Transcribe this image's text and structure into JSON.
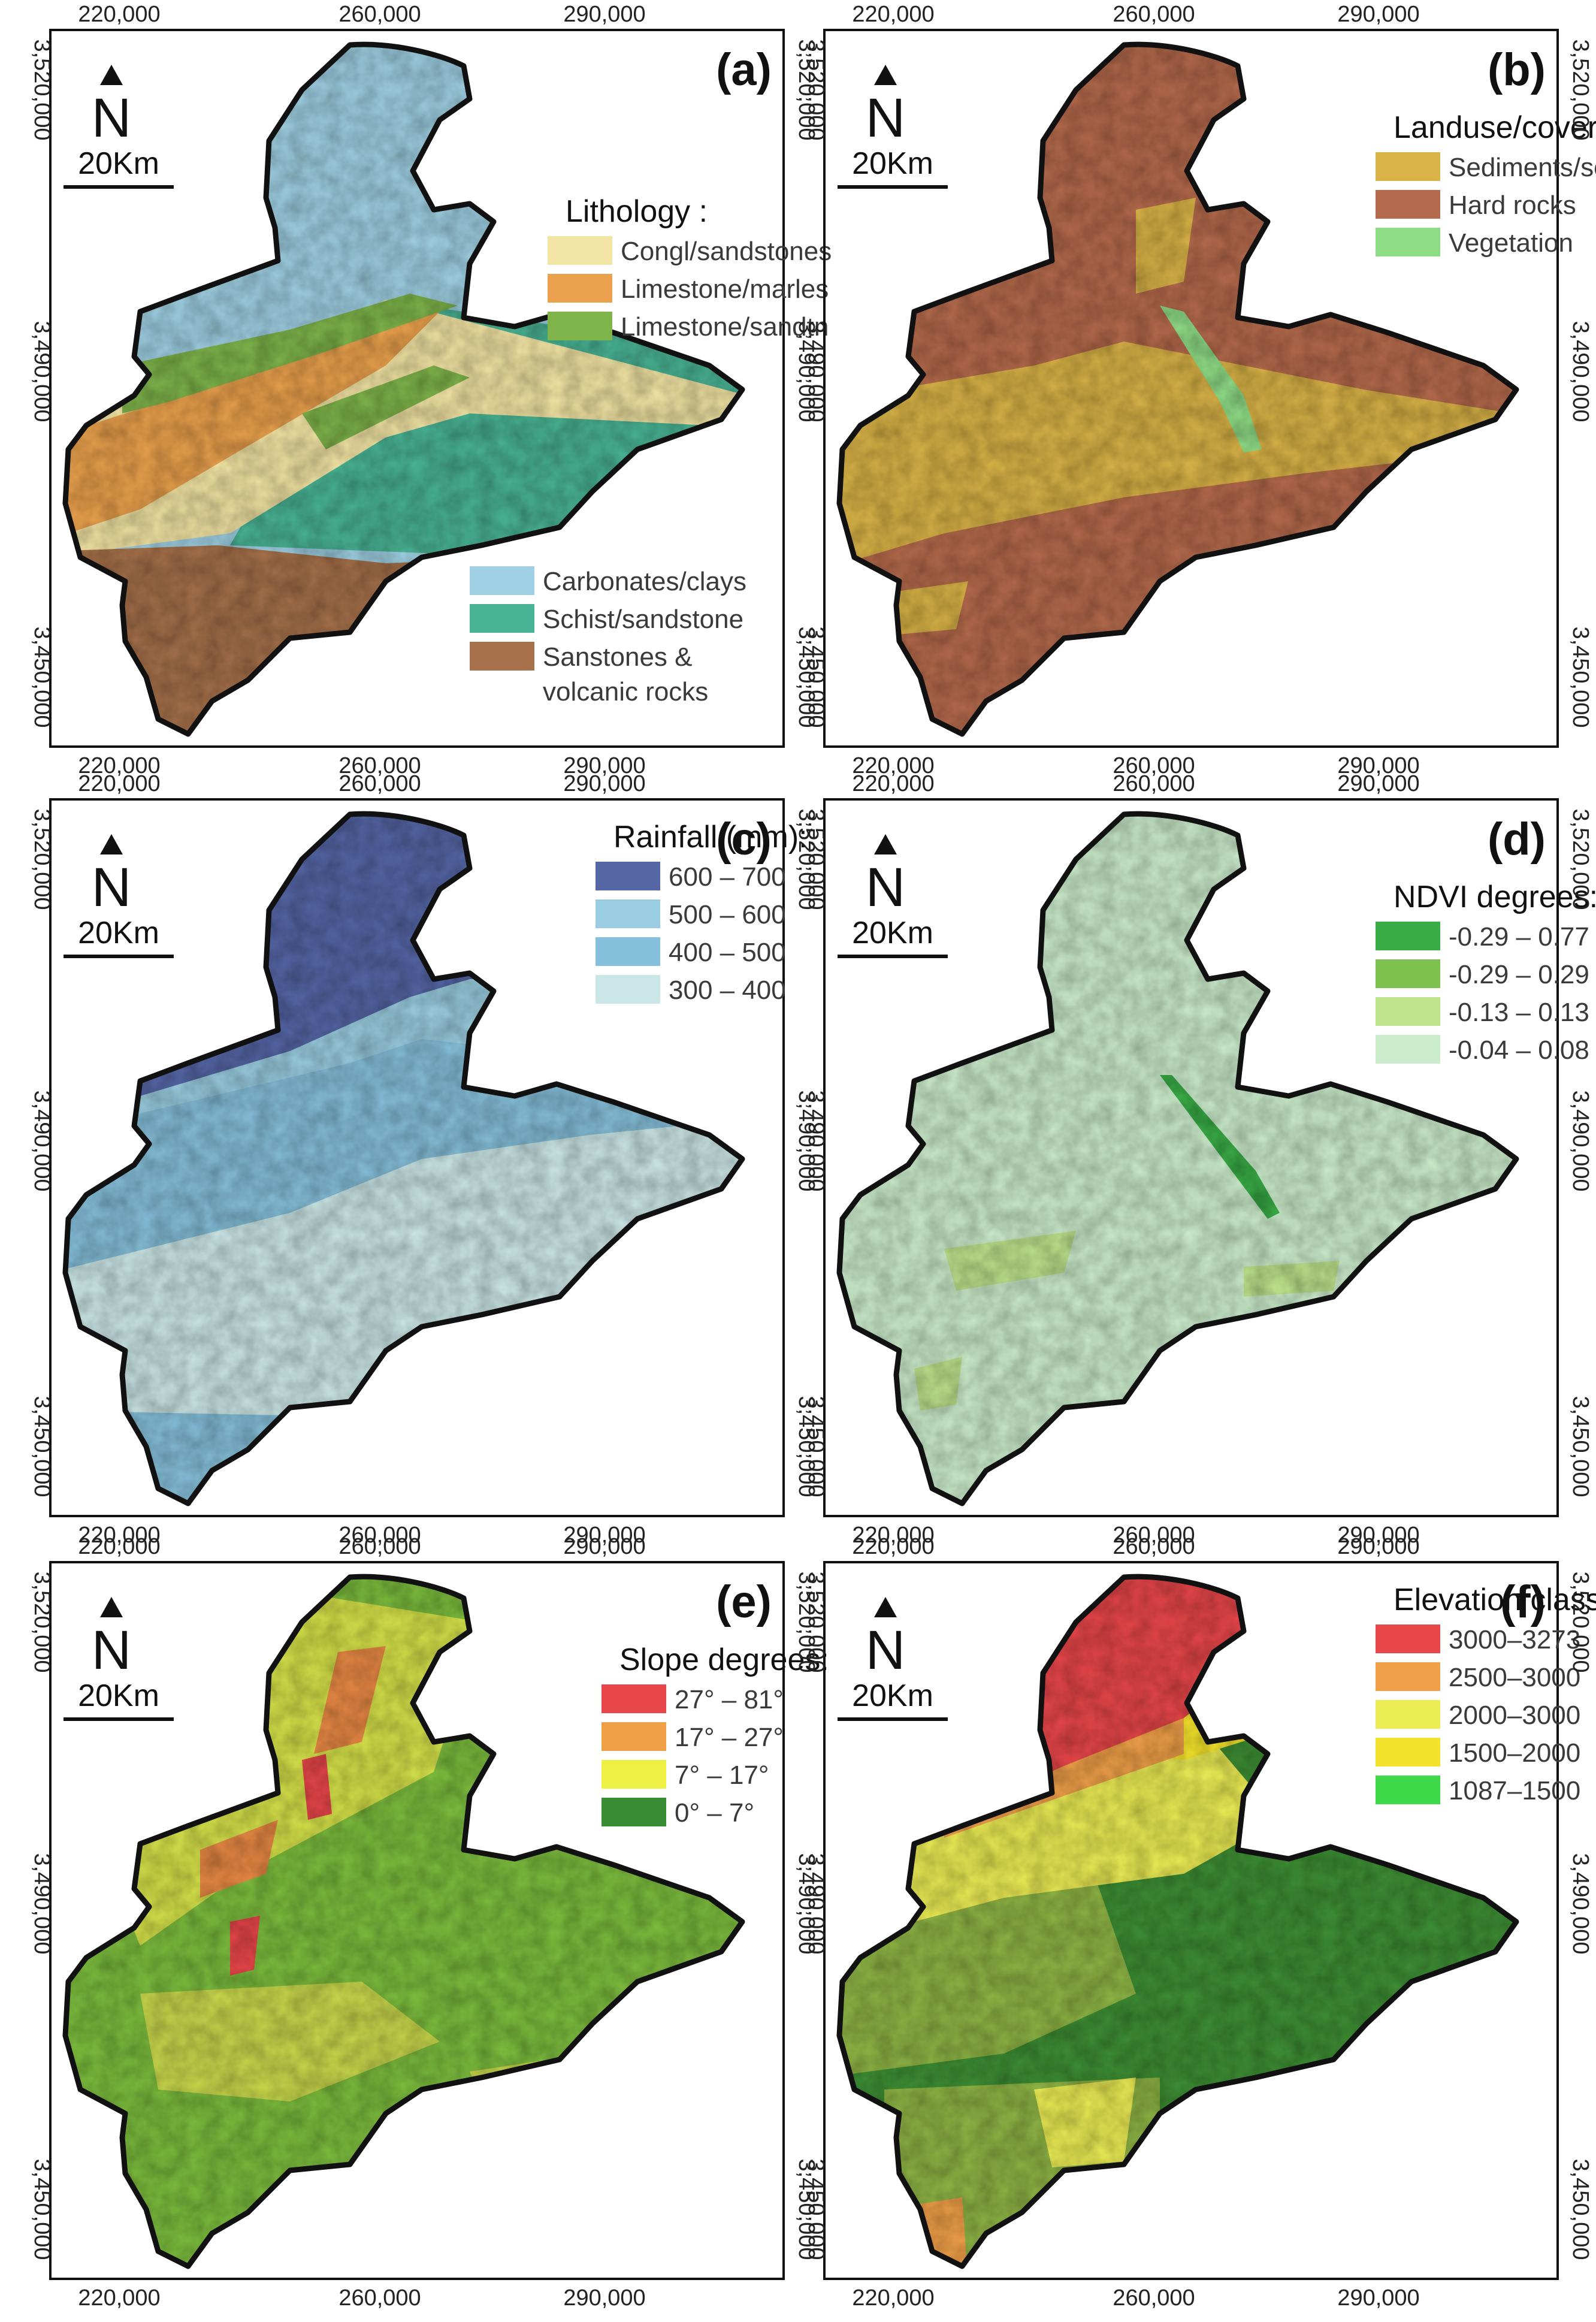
{
  "coords": {
    "x_ticks": [
      "220,000",
      "260,000",
      "290,000"
    ],
    "y_ticks": [
      "3,520,000",
      "3,490,000",
      "3,450,000"
    ]
  },
  "scale_bar": "20Km",
  "north_label": "N",
  "panels": [
    {
      "key": "a",
      "label": "(a)",
      "map_type": "lithology",
      "legend_title": "Lithology :",
      "legend_items": [
        {
          "label": "Congl/sandstones",
          "color": "#f2e4a4"
        },
        {
          "label": "Limestone/marles",
          "color": "#eaa14d"
        },
        {
          "label": "Limestone/sandtn",
          "color": "#7fb44b"
        }
      ],
      "legend_items_lower": [
        {
          "label": "Carbonates/clays",
          "color": "#9fd0e3"
        },
        {
          "label": "Schist/sandstone",
          "color": "#49b394"
        },
        {
          "label": "Sanstones &",
          "label2": "volcanic rocks",
          "color": "#a5704a"
        }
      ]
    },
    {
      "key": "b",
      "label": "(b)",
      "map_type": "landuse",
      "legend_title": "Landuse/cover :",
      "legend_items": [
        {
          "label": "Sediments/soils",
          "color": "#d9b347"
        },
        {
          "label": "Hard rocks",
          "color": "#b46a4c"
        },
        {
          "label": "Vegetation",
          "color": "#8fdc86"
        }
      ]
    },
    {
      "key": "c",
      "label": "(c)",
      "map_type": "rainfall",
      "legend_title": "Rainfall (mm):",
      "legend_items": [
        {
          "label": "600 – 700",
          "color": "#5566a5"
        },
        {
          "label": "500 – 600",
          "color": "#9acde0"
        },
        {
          "label": "400 – 500",
          "color": "#85bfd9"
        },
        {
          "label": "300 – 400",
          "color": "#cbe6e6"
        }
      ]
    },
    {
      "key": "d",
      "label": "(d)",
      "map_type": "ndvi",
      "legend_title": "NDVI degrees:",
      "legend_items": [
        {
          "label": "-0.29 – 0.77",
          "color": "#3aad47"
        },
        {
          "label": "-0.29 – 0.29",
          "color": "#7dc14f"
        },
        {
          "label": "-0.13 – 0.13",
          "color": "#bfe48e"
        },
        {
          "label": "-0.04 – 0.08",
          "color": "#cbeccb"
        }
      ]
    },
    {
      "key": "e",
      "label": "(e)",
      "map_type": "slope",
      "legend_title": "Slope degrees:",
      "legend_items": [
        {
          "label": "27° – 81°",
          "color": "#e8474a"
        },
        {
          "label": "17° – 27°",
          "color": "#ef9f45"
        },
        {
          "label": "7° – 17°",
          "color": "#eef044"
        },
        {
          "label": "0° – 7°",
          "color": "#3a8c35"
        }
      ]
    },
    {
      "key": "f",
      "label": "(f)",
      "map_type": "elevation",
      "legend_title": "Elevation classes:",
      "legend_items": [
        {
          "label": "3000–3273",
          "color": "#e8474a"
        },
        {
          "label": "2500–3000",
          "color": "#f0a049"
        },
        {
          "label": "2000–3000",
          "color": "#ecec55"
        },
        {
          "label": "1500–2000",
          "color": "#f4e32c"
        },
        {
          "label": "1087–1500",
          "color": "#3fd94a"
        }
      ]
    }
  ]
}
